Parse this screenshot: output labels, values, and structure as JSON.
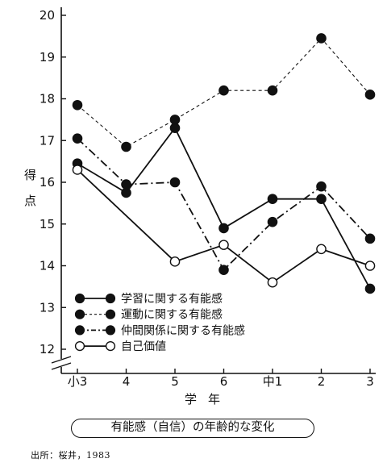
{
  "chart_data": {
    "type": "line",
    "categories": [
      "小3",
      "4",
      "5",
      "6",
      "中1",
      "2",
      "3"
    ],
    "ylabel": "得点",
    "xlabel": "学年",
    "ylim": [
      12,
      20
    ],
    "yticks": [
      12,
      13,
      14,
      15,
      16,
      17,
      18,
      19,
      20
    ],
    "grid": false,
    "legend_position": "bottom-left",
    "series": [
      {
        "name": "学習に関する有能感",
        "style": "solid",
        "marker": "filled",
        "values": [
          16.45,
          15.75,
          17.3,
          14.9,
          15.6,
          15.6,
          13.45
        ]
      },
      {
        "name": "運動に関する有能感",
        "style": "dashed",
        "marker": "filled",
        "values": [
          17.85,
          16.85,
          17.5,
          18.2,
          18.2,
          19.45,
          18.1
        ]
      },
      {
        "name": "仲間関係に関する有能感",
        "style": "dashdot",
        "marker": "filled",
        "values": [
          17.05,
          15.95,
          16.0,
          13.9,
          15.05,
          15.9,
          14.65
        ]
      },
      {
        "name": "自己価値",
        "style": "solid",
        "marker": "open",
        "values": [
          16.3,
          null,
          14.1,
          14.5,
          13.6,
          14.4,
          14.0
        ]
      }
    ]
  },
  "caption": "有能感（自信）の年齢的な変化",
  "source": "出所：桜井，1983"
}
